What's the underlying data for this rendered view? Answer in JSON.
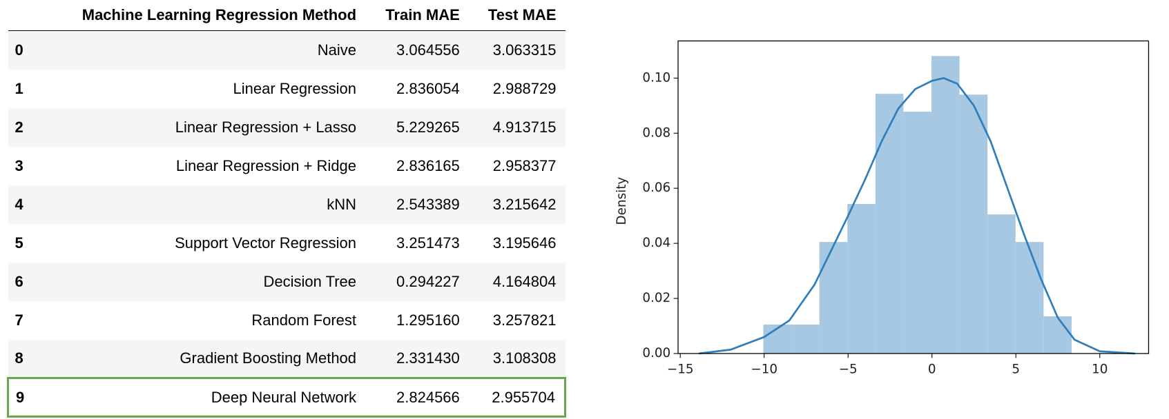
{
  "table": {
    "header": [
      "Machine Learning Regression Method",
      "Train MAE",
      "Test MAE"
    ],
    "rows": [
      [
        "0",
        "Naive",
        "3.064556",
        "3.063315"
      ],
      [
        "1",
        "Linear Regression",
        "2.836054",
        "2.988729"
      ],
      [
        "2",
        "Linear Regression + Lasso",
        "5.229265",
        "4.913715"
      ],
      [
        "3",
        "Linear Regression + Ridge",
        "2.836165",
        "2.958377"
      ],
      [
        "4",
        "kNN",
        "2.543389",
        "3.215642"
      ],
      [
        "5",
        "Support Vector Regression",
        "3.251473",
        "3.195646"
      ],
      [
        "6",
        "Decision Tree",
        "0.294227",
        "4.164804"
      ],
      [
        "7",
        "Random Forest",
        "1.295160",
        "3.257821"
      ],
      [
        "8",
        "Gradient Boosting Method",
        "2.331430",
        "3.108308"
      ],
      [
        "9",
        "Deep Neural Network",
        "2.824566",
        "2.955704"
      ]
    ]
  },
  "chart_data": {
    "type": "histogram",
    "ylabel": "Density",
    "color": "#a6c8e2",
    "bins": [
      -10.05,
      -8.38,
      -6.71,
      -5.04,
      -3.37,
      -1.7,
      -0.03,
      1.64,
      3.31,
      4.98,
      6.65,
      8.32
    ],
    "values": [
      0.0105,
      0.0105,
      0.0405,
      0.0543,
      0.0943,
      0.0878,
      0.108,
      0.094,
      0.0505,
      0.0405,
      0.0135
    ],
    "kde": {
      "color": "#2f7ebc",
      "x": [
        -13.9,
        -12,
        -10,
        -8.5,
        -7,
        -5,
        -4,
        -3,
        -2,
        -1,
        0,
        0.7,
        1.5,
        2.5,
        3.5,
        4.5,
        5.5,
        6.5,
        7.5,
        8.5,
        10,
        12.1
      ],
      "values": [
        0,
        0.0014,
        0.006,
        0.012,
        0.025,
        0.05,
        0.063,
        0.077,
        0.089,
        0.096,
        0.099,
        0.1,
        0.098,
        0.09,
        0.077,
        0.06,
        0.043,
        0.027,
        0.013,
        0.005,
        0.0008,
        0
      ]
    },
    "xlim": [
      -15.13,
      12.91
    ],
    "ylim": [
      0,
      0.1135
    ],
    "xticks": [
      {
        "value": -15,
        "label": "−15"
      },
      {
        "value": -10,
        "label": "−10"
      },
      {
        "value": -5,
        "label": "−5"
      },
      0,
      5,
      10
    ],
    "yticks": [
      {
        "value": 0,
        "label": "0.00"
      },
      {
        "value": 0.02,
        "label": "0.02"
      },
      {
        "value": 0.04,
        "label": "0.04"
      },
      {
        "value": 0.06,
        "label": "0.06"
      },
      {
        "value": 0.08,
        "label": "0.08"
      },
      {
        "value": 0.1,
        "label": "0.10"
      }
    ]
  }
}
